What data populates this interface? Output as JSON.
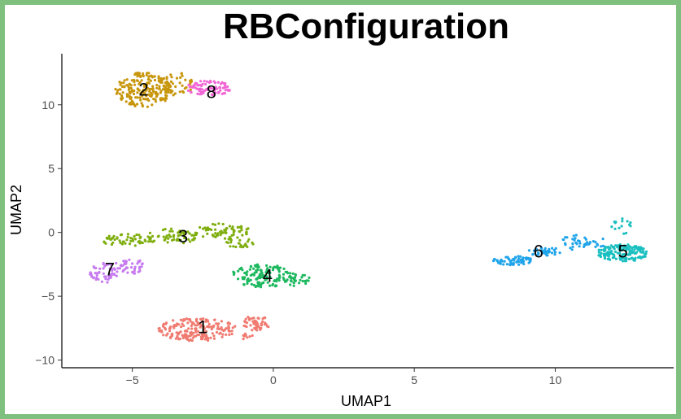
{
  "chart_data": {
    "type": "scatter",
    "title": "RBConfiguration",
    "xlabel": "UMAP1",
    "ylabel": "UMAP2",
    "xlim": [
      -7.5,
      14.2
    ],
    "ylim": [
      -10.6,
      14.0
    ],
    "xticks": [
      -5,
      0,
      5,
      10
    ],
    "yticks": [
      -10,
      -5,
      0,
      5,
      10
    ],
    "xtick_labels": [
      "−5",
      "0",
      "5",
      "10"
    ],
    "ytick_labels": [
      "−10",
      "−5",
      "0",
      "5",
      "10"
    ],
    "grid": false,
    "legend": "none",
    "clusters": [
      {
        "label": "1",
        "color": "#f07b71",
        "label_pos": [
          -2.5,
          -7.4
        ],
        "regions": [
          {
            "cx": -2.7,
            "cy": -7.6,
            "rx": 1.4,
            "ry": 0.9,
            "n": 200
          },
          {
            "cx": -0.6,
            "cy": -7.1,
            "rx": 0.5,
            "ry": 0.6,
            "n": 50
          },
          {
            "cx": -0.9,
            "cy": -8.2,
            "rx": 0.2,
            "ry": 0.3,
            "n": 8
          }
        ]
      },
      {
        "label": "2",
        "color": "#c8960c",
        "label_pos": [
          -4.6,
          11.2
        ],
        "regions": [
          {
            "cx": -4.6,
            "cy": 11.2,
            "rx": 1.0,
            "ry": 1.4,
            "n": 200
          },
          {
            "cx": -3.4,
            "cy": 11.6,
            "rx": 0.6,
            "ry": 0.9,
            "n": 50
          }
        ]
      },
      {
        "label": "3",
        "color": "#7fae0e",
        "label_pos": [
          -3.2,
          -0.3
        ],
        "regions": [
          {
            "cx": -5.2,
            "cy": -0.6,
            "rx": 0.9,
            "ry": 0.5,
            "n": 55
          },
          {
            "cx": -3.6,
            "cy": -0.3,
            "rx": 1.0,
            "ry": 0.6,
            "n": 60
          },
          {
            "cx": -1.8,
            "cy": 0.1,
            "rx": 1.0,
            "ry": 0.6,
            "n": 65
          },
          {
            "cx": -1.2,
            "cy": -0.8,
            "rx": 0.6,
            "ry": 0.4,
            "n": 25
          }
        ]
      },
      {
        "label": "4",
        "color": "#1cb85e",
        "label_pos": [
          -0.2,
          -3.4
        ],
        "regions": [
          {
            "cx": -0.4,
            "cy": -3.4,
            "rx": 1.1,
            "ry": 0.9,
            "n": 130
          },
          {
            "cx": 0.8,
            "cy": -3.7,
            "rx": 0.5,
            "ry": 0.5,
            "n": 35
          }
        ]
      },
      {
        "label": "5",
        "color": "#1bbfc0",
        "label_pos": [
          12.4,
          -1.5
        ],
        "regions": [
          {
            "cx": 12.4,
            "cy": -1.6,
            "rx": 0.9,
            "ry": 0.7,
            "n": 160
          },
          {
            "cx": 12.4,
            "cy": 0.5,
            "rx": 0.4,
            "ry": 0.6,
            "n": 15
          }
        ]
      },
      {
        "label": "6",
        "color": "#1fa4ea",
        "label_pos": [
          9.4,
          -1.5
        ],
        "regions": [
          {
            "cx": 8.5,
            "cy": -2.2,
            "rx": 0.7,
            "ry": 0.35,
            "n": 60
          },
          {
            "cx": 9.6,
            "cy": -1.5,
            "rx": 0.6,
            "ry": 0.35,
            "n": 35
          },
          {
            "cx": 10.7,
            "cy": -0.8,
            "rx": 0.5,
            "ry": 0.6,
            "n": 30
          },
          {
            "cx": 11.5,
            "cy": -0.7,
            "rx": 0.3,
            "ry": 0.5,
            "n": 10
          }
        ]
      },
      {
        "label": "7",
        "color": "#c77bf0",
        "label_pos": [
          -5.8,
          -2.9
        ],
        "regions": [
          {
            "cx": -6.0,
            "cy": -3.2,
            "rx": 0.5,
            "ry": 0.8,
            "n": 55
          },
          {
            "cx": -5.1,
            "cy": -2.6,
            "rx": 0.5,
            "ry": 0.7,
            "n": 40
          }
        ]
      },
      {
        "label": "8",
        "color": "#f266d6",
        "label_pos": [
          -2.2,
          11.0
        ],
        "regions": [
          {
            "cx": -2.3,
            "cy": 11.3,
            "rx": 0.8,
            "ry": 0.6,
            "n": 90
          }
        ]
      }
    ]
  }
}
